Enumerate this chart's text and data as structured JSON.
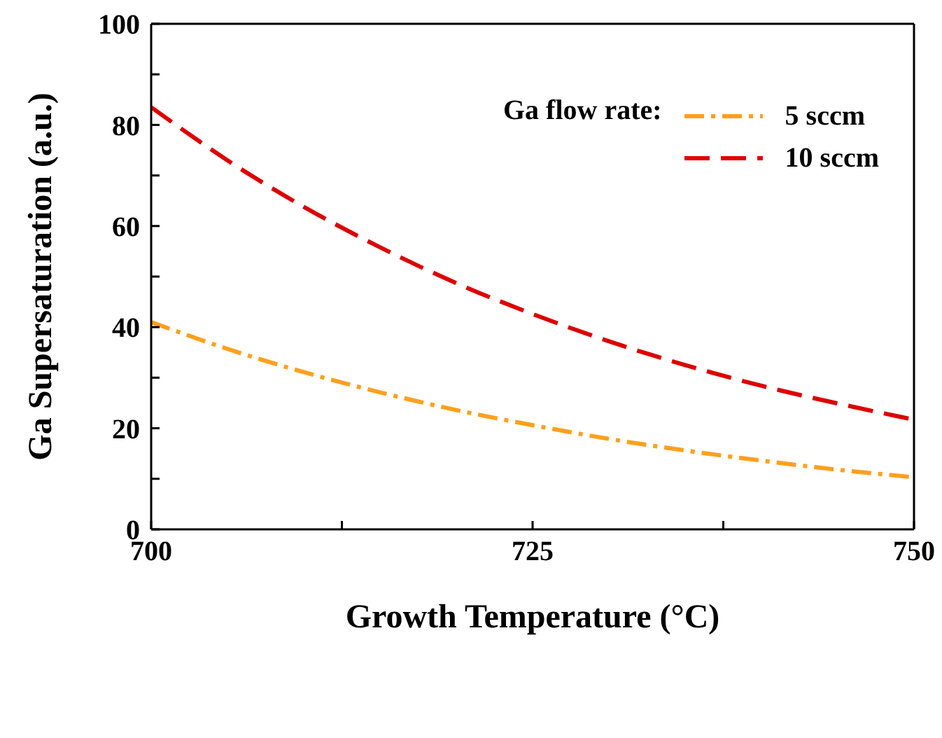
{
  "chart_data": {
    "type": "line",
    "xlabel": "Growth Temperature (°C)",
    "ylabel": "Ga Supersaturation (a.u.)",
    "legend_title": "Ga flow rate:",
    "legend": "top right",
    "marker": "none",
    "x": [
      700,
      705,
      710,
      715,
      720,
      725,
      730,
      735,
      740,
      745,
      750
    ],
    "xlim": [
      700,
      750
    ],
    "xticks": [
      700,
      {
        "value": 712.5,
        "label": null
      },
      725,
      {
        "value": 737.5,
        "label": null
      },
      750
    ],
    "ylim": [
      0,
      100
    ],
    "yticks": [
      0,
      {
        "value": 10,
        "label": null
      },
      20,
      {
        "value": 30,
        "label": null
      },
      40,
      {
        "value": 50,
        "label": null
      },
      60,
      {
        "value": 70,
        "label": null
      },
      80,
      {
        "value": 90,
        "label": null
      },
      100
    ],
    "series": [
      {
        "name": "5 sccm",
        "color": "#ffa01e",
        "line_style": "dashdot",
        "values": [
          41,
          35.7,
          31.1,
          27.1,
          23.6,
          20.6,
          17.9,
          15.6,
          13.6,
          11.8,
          10.3
        ]
      },
      {
        "name": "10 sccm",
        "color": "#dc0000",
        "line_style": "dashed",
        "values": [
          83.5,
          73.0,
          63.8,
          55.8,
          48.7,
          42.6,
          37.2,
          32.5,
          28.4,
          24.9,
          21.7
        ]
      }
    ]
  }
}
